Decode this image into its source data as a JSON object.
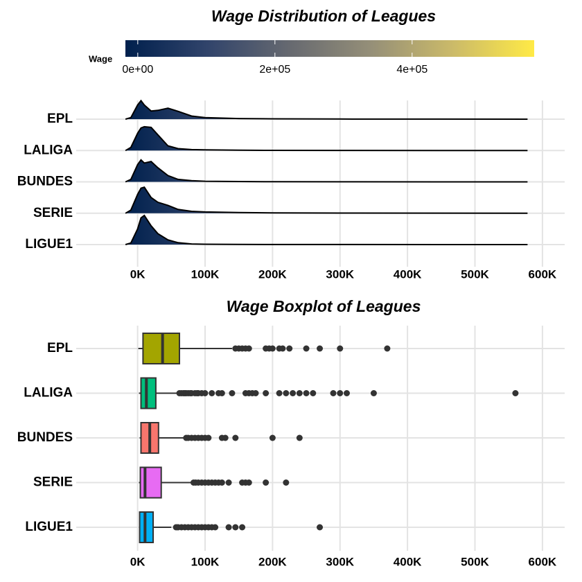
{
  "chart_data": [
    {
      "type": "ridgeline",
      "title": "Wage Distribution of Leagues",
      "x": [
        -18000,
        -10000,
        0,
        5000,
        10000,
        20000,
        30000,
        45000,
        60000,
        80000,
        100000,
        150000,
        200000,
        300000,
        578000
      ],
      "series": [
        {
          "name": "EPL",
          "values": [
            0,
            0.05,
            0.45,
            0.59,
            0.45,
            0.26,
            0.28,
            0.35,
            0.25,
            0.1,
            0.05,
            0.02,
            0.01,
            0.005,
            0
          ]
        },
        {
          "name": "LALIGA",
          "values": [
            0,
            0.1,
            0.55,
            0.72,
            0.76,
            0.74,
            0.5,
            0.15,
            0.06,
            0.03,
            0.02,
            0.01,
            0.005,
            0.003,
            0
          ]
        },
        {
          "name": "BUNDES",
          "values": [
            0,
            0.08,
            0.55,
            0.7,
            0.6,
            0.65,
            0.45,
            0.2,
            0.08,
            0.04,
            0.02,
            0.01,
            0.005,
            0.003,
            0
          ]
        },
        {
          "name": "SERIE",
          "values": [
            0,
            0.1,
            0.6,
            0.8,
            0.83,
            0.5,
            0.35,
            0.25,
            0.12,
            0.06,
            0.04,
            0.02,
            0.01,
            0.005,
            0
          ]
        },
        {
          "name": "LIGUE1",
          "values": [
            0,
            0.05,
            0.5,
            0.85,
            0.93,
            0.6,
            0.35,
            0.15,
            0.06,
            0.02,
            0.01,
            0.005,
            0.003,
            0.002,
            0
          ]
        }
      ],
      "line_color": "#000000",
      "xlim": [
        -91000,
        633000
      ],
      "xticks": [
        {
          "value": 0,
          "label": "0K"
        },
        {
          "value": 100000,
          "label": "100K"
        },
        {
          "value": 200000,
          "label": "200K"
        },
        {
          "value": 300000,
          "label": "300K"
        },
        {
          "value": 400000,
          "label": "400K"
        },
        {
          "value": 500000,
          "label": "500K"
        },
        {
          "value": 600000,
          "label": "600K"
        }
      ],
      "grid": true,
      "legend": {
        "title": "Wage",
        "position": "top",
        "colors": [
          "#00204d",
          "#31446b",
          "#666970",
          "#958f78",
          "#cbba69",
          "#ffea46"
        ],
        "lim": [
          -18000,
          578000
        ],
        "ticks": [
          {
            "value": 0,
            "label": "0e+00"
          },
          {
            "value": 200000,
            "label": "2e+05"
          },
          {
            "value": 400000,
            "label": "4e+05"
          }
        ]
      }
    },
    {
      "type": "boxplot",
      "title": "Wage Boxplot of Leagues",
      "series": [
        {
          "name": "EPL",
          "color": "#a3a500",
          "min": 1000,
          "q1": 8000,
          "median": 37000,
          "q3": 62000,
          "max": 140000,
          "outliers": [
            145000,
            150000,
            155000,
            160000,
            165000,
            190000,
            195000,
            200000,
            210000,
            215000,
            225000,
            250000,
            270000,
            300000,
            370000
          ]
        },
        {
          "name": "LALIGA",
          "color": "#00bf7d",
          "min": 2000,
          "q1": 5000,
          "median": 13000,
          "q3": 27000,
          "max": 58000,
          "outliers": [
            62000,
            65000,
            68000,
            70000,
            72000,
            75000,
            78000,
            80000,
            85000,
            88000,
            90000,
            95000,
            100000,
            110000,
            120000,
            125000,
            140000,
            160000,
            165000,
            170000,
            175000,
            190000,
            210000,
            220000,
            230000,
            240000,
            250000,
            260000,
            290000,
            300000,
            310000,
            350000,
            560000
          ]
        },
        {
          "name": "BUNDES",
          "color": "#f8766d",
          "min": 3000,
          "q1": 5000,
          "median": 18000,
          "q3": 31000,
          "max": 68000,
          "outliers": [
            72000,
            75000,
            80000,
            85000,
            90000,
            95000,
            100000,
            105000,
            125000,
            130000,
            145000,
            200000,
            240000
          ]
        },
        {
          "name": "SERIE",
          "color": "#e76bf3",
          "min": 2000,
          "q1": 4000,
          "median": 11000,
          "q3": 35000,
          "max": 79000,
          "outliers": [
            83000,
            86000,
            90000,
            95000,
            100000,
            105000,
            110000,
            115000,
            120000,
            125000,
            135000,
            155000,
            160000,
            165000,
            190000,
            220000
          ]
        },
        {
          "name": "LIGUE1",
          "color": "#00b0f6",
          "min": 2000,
          "q1": 3000,
          "median": 11000,
          "q3": 23000,
          "max": 50000,
          "outliers": [
            57000,
            60000,
            65000,
            70000,
            75000,
            80000,
            85000,
            90000,
            95000,
            100000,
            105000,
            110000,
            115000,
            135000,
            145000,
            155000,
            270000
          ]
        }
      ],
      "xlim": [
        -91000,
        633000
      ],
      "xticks": [
        {
          "value": 0,
          "label": "0K"
        },
        {
          "value": 100000,
          "label": "100K"
        },
        {
          "value": 200000,
          "label": "200K"
        },
        {
          "value": 300000,
          "label": "300K"
        },
        {
          "value": 400000,
          "label": "400K"
        },
        {
          "value": 500000,
          "label": "500K"
        },
        {
          "value": 600000,
          "label": "600K"
        }
      ],
      "grid": true
    }
  ]
}
